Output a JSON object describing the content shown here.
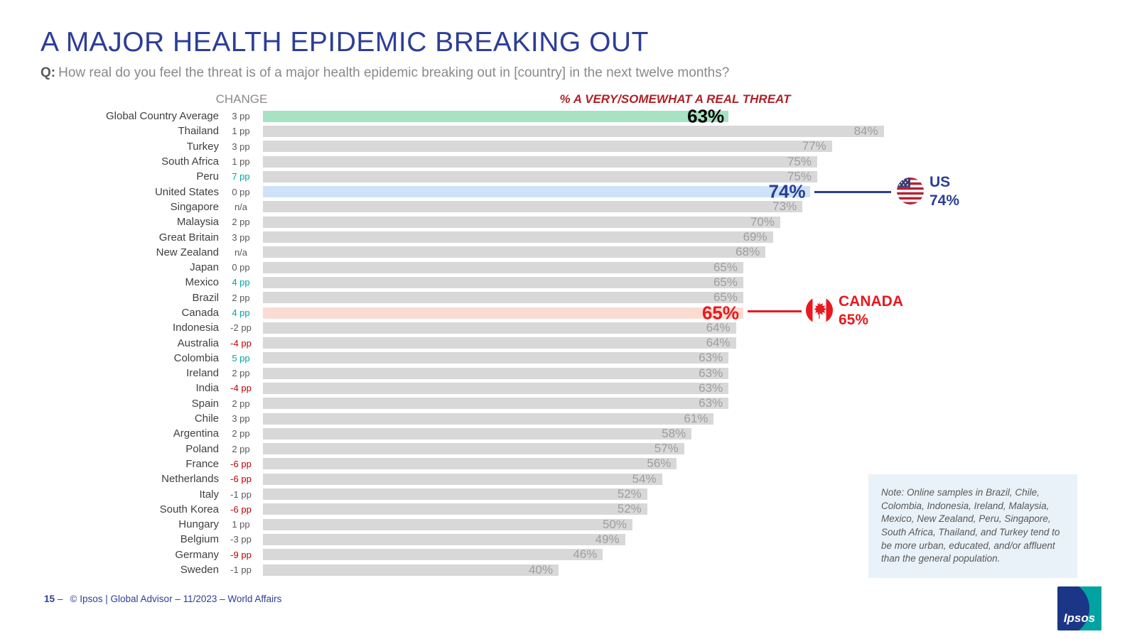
{
  "header": {
    "title": "A MAJOR HEALTH EPIDEMIC BREAKING OUT",
    "question_prefix": "Q:",
    "question": "How real do you feel the threat is of a major health epidemic breaking out in [country] in the next twelve months?"
  },
  "chart_data": {
    "type": "bar",
    "orientation": "horizontal",
    "change_header": "CHANGE",
    "value_header": "% A VERY/SOMEWHAT A REAL THREAT",
    "xlim": [
      0,
      100
    ],
    "colors": {
      "bar_default": "#d8d8d8",
      "bar_global": "#a5e3c2",
      "bar_us": "#cfe2f8",
      "bar_canada": "#fbdcd2",
      "change_positive": "#00a3a1",
      "change_negative": "#c00000",
      "label_global": "#000000",
      "label_us": "#2a3f93",
      "label_canada": "#e8191f"
    },
    "rows": [
      {
        "country": "Global Country Average",
        "change": "3 pp",
        "change_color": "gray",
        "value": 63,
        "label": "63%",
        "highlight": "global"
      },
      {
        "country": "Thailand",
        "change": "1 pp",
        "change_color": "gray",
        "value": 84,
        "label": "84%"
      },
      {
        "country": "Turkey",
        "change": "3 pp",
        "change_color": "gray",
        "value": 77,
        "label": "77%"
      },
      {
        "country": "South Africa",
        "change": "1 pp",
        "change_color": "gray",
        "value": 75,
        "label": "75%"
      },
      {
        "country": "Peru",
        "change": "7 pp",
        "change_color": "teal",
        "value": 75,
        "label": "75%"
      },
      {
        "country": "United States",
        "change": "0 pp",
        "change_color": "gray",
        "value": 74,
        "label": "74%",
        "highlight": "us"
      },
      {
        "country": "Singapore",
        "change": "n/a",
        "change_color": "gray",
        "value": 73,
        "label": "73%"
      },
      {
        "country": "Malaysia",
        "change": "2 pp",
        "change_color": "gray",
        "value": 70,
        "label": "70%"
      },
      {
        "country": "Great Britain",
        "change": "3 pp",
        "change_color": "gray",
        "value": 69,
        "label": "69%"
      },
      {
        "country": "New Zealand",
        "change": "n/a",
        "change_color": "gray",
        "value": 68,
        "label": "68%"
      },
      {
        "country": "Japan",
        "change": "0 pp",
        "change_color": "gray",
        "value": 65,
        "label": "65%"
      },
      {
        "country": "Mexico",
        "change": "4 pp",
        "change_color": "teal",
        "value": 65,
        "label": "65%"
      },
      {
        "country": "Brazil",
        "change": "2 pp",
        "change_color": "gray",
        "value": 65,
        "label": "65%"
      },
      {
        "country": "Canada",
        "change": "4 pp",
        "change_color": "teal",
        "value": 65,
        "label": "65%",
        "highlight": "canada"
      },
      {
        "country": "Indonesia",
        "change": "-2 pp",
        "change_color": "gray",
        "value": 64,
        "label": "64%"
      },
      {
        "country": "Australia",
        "change": "-4 pp",
        "change_color": "red",
        "value": 64,
        "label": "64%"
      },
      {
        "country": "Colombia",
        "change": "5 pp",
        "change_color": "teal",
        "value": 63,
        "label": "63%"
      },
      {
        "country": "Ireland",
        "change": "2 pp",
        "change_color": "gray",
        "value": 63,
        "label": "63%"
      },
      {
        "country": "India",
        "change": "-4 pp",
        "change_color": "red",
        "value": 63,
        "label": "63%"
      },
      {
        "country": "Spain",
        "change": "2 pp",
        "change_color": "gray",
        "value": 63,
        "label": "63%"
      },
      {
        "country": "Chile",
        "change": "3 pp",
        "change_color": "gray",
        "value": 61,
        "label": "61%"
      },
      {
        "country": "Argentina",
        "change": "2 pp",
        "change_color": "gray",
        "value": 58,
        "label": "58%"
      },
      {
        "country": "Poland",
        "change": "2 pp",
        "change_color": "gray",
        "value": 57,
        "label": "57%"
      },
      {
        "country": "France",
        "change": "-6 pp",
        "change_color": "red",
        "value": 56,
        "label": "56%"
      },
      {
        "country": "Netherlands",
        "change": "-6 pp",
        "change_color": "red",
        "value": 54,
        "label": "54%"
      },
      {
        "country": "Italy",
        "change": "-1 pp",
        "change_color": "gray",
        "value": 52,
        "label": "52%"
      },
      {
        "country": "South Korea",
        "change": "-6 pp",
        "change_color": "red",
        "value": 52,
        "label": "52%"
      },
      {
        "country": "Hungary",
        "change": "1 pp",
        "change_color": "gray",
        "value": 50,
        "label": "50%"
      },
      {
        "country": "Belgium",
        "change": "-3 pp",
        "change_color": "gray",
        "value": 49,
        "label": "49%"
      },
      {
        "country": "Germany",
        "change": "-9 pp",
        "change_color": "red",
        "value": 46,
        "label": "46%"
      },
      {
        "country": "Sweden",
        "change": "-1 pp",
        "change_color": "gray",
        "value": 40,
        "label": "40%"
      }
    ]
  },
  "callouts": {
    "us": {
      "label": "US",
      "value": "74%",
      "color": "#2a3f93"
    },
    "canada": {
      "label": "CANADA",
      "value": "65%",
      "color": "#e8191f"
    }
  },
  "note": "Note: Online samples in Brazil, Chile, Colombia, Indonesia, Ireland, Malaysia, Mexico, New Zealand, Peru, Singapore, South Africa, Thailand, and Turkey tend to be more urban, educated, and/or affluent than the general population.",
  "footer": {
    "page": "15",
    "separator": "–",
    "text": "© Ipsos | Global Advisor – 11/2023 – World Affairs",
    "logo_text": "Ipsos"
  }
}
